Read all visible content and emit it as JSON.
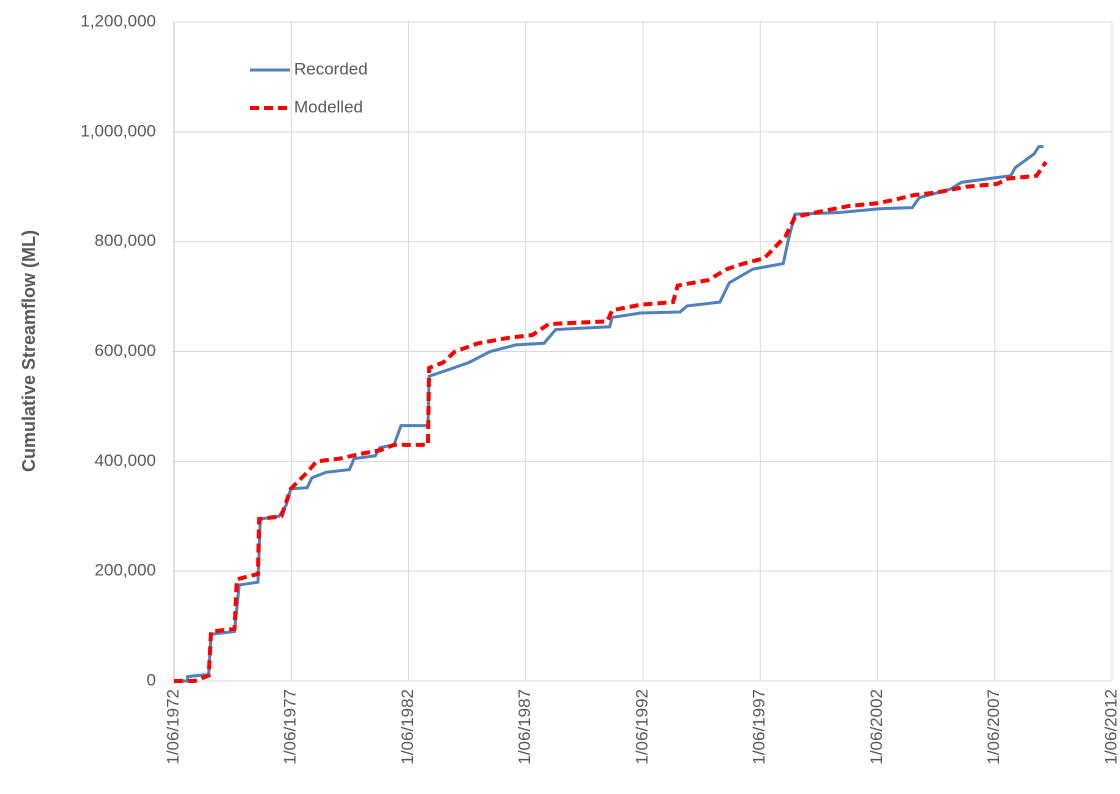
{
  "chart_data": {
    "type": "line",
    "y_label": "Cumulative Streamflow (ML)",
    "xlim": [
      1972.42,
      2012.42
    ],
    "xticks": [
      {
        "value": 1972.42,
        "label": "1/06/1972"
      },
      {
        "value": 1977.42,
        "label": "1/06/1977"
      },
      {
        "value": 1982.42,
        "label": "1/06/1982"
      },
      {
        "value": 1987.42,
        "label": "1/06/1987"
      },
      {
        "value": 1992.42,
        "label": "1/06/1992"
      },
      {
        "value": 1997.42,
        "label": "1/06/1997"
      },
      {
        "value": 2002.42,
        "label": "1/06/2002"
      },
      {
        "value": 2007.42,
        "label": "1/06/2007"
      },
      {
        "value": 2012.42,
        "label": "1/06/2012"
      }
    ],
    "ylim": [
      0,
      1200000
    ],
    "yticks": [
      0,
      {
        "value": 200000,
        "label": "200,000"
      },
      {
        "value": 400000,
        "label": "400,000"
      },
      {
        "value": 600000,
        "label": "600,000"
      },
      {
        "value": 800000,
        "label": "800,000"
      },
      {
        "value": 1000000,
        "label": "1,000,000"
      },
      {
        "value": 1200000,
        "label": "1,200,000"
      }
    ],
    "grid": true,
    "legend": "upper left",
    "series": [
      {
        "name": "Recorded",
        "color": "#4f81bd",
        "dash": false,
        "x": [
          1972.42,
          1973.0,
          1973.0,
          1973.9,
          1974.0,
          1975.0,
          1975.2,
          1976.0,
          1976.1,
          1976.9,
          1977.2,
          1977.4,
          1978.1,
          1978.3,
          1978.9,
          1979.9,
          1980.1,
          1981.0,
          1981.2,
          1981.8,
          1982.1,
          1983.25,
          1983.3,
          1984.0,
          1985.0,
          1985.9,
          1987.0,
          1988.2,
          1988.7,
          1991.0,
          1991.1,
          1992.3,
          1994.0,
          1994.3,
          1995.7,
          1996.1,
          1997.1,
          1998.4,
          1998.6,
          1998.9,
          2000.8,
          2002.5,
          2003.9,
          2004.2,
          2005.5,
          2006.0,
          2007.2,
          2008.1,
          2008.3,
          2009.1,
          2009.3,
          2009.5
        ],
        "values": [
          0,
          0,
          8000,
          12000,
          85000,
          90000,
          175000,
          180000,
          295000,
          300000,
          320000,
          350000,
          352000,
          370000,
          380000,
          385000,
          405000,
          410000,
          425000,
          430000,
          465000,
          465000,
          555000,
          565000,
          580000,
          600000,
          612000,
          615000,
          640000,
          645000,
          662000,
          670000,
          672000,
          683000,
          690000,
          725000,
          750000,
          760000,
          800000,
          850000,
          853000,
          860000,
          862000,
          880000,
          895000,
          908000,
          915000,
          920000,
          935000,
          960000,
          973000,
          973000
        ]
      },
      {
        "name": "Modelled",
        "color": "#ff0000",
        "dash": true,
        "x": [
          1972.42,
          1973.3,
          1973.9,
          1974.0,
          1975.0,
          1975.1,
          1976.0,
          1976.05,
          1977.0,
          1977.4,
          1978.1,
          1978.5,
          1979.5,
          1980.3,
          1981.2,
          1981.8,
          1983.25,
          1983.3,
          1983.9,
          1984.4,
          1985.4,
          1986.7,
          1987.7,
          1988.4,
          1990.9,
          1991.1,
          1992.3,
          1993.7,
          1993.9,
          1995.2,
          1996.0,
          1996.7,
          1997.6,
          1998.5,
          1998.9,
          2000.0,
          2001.2,
          2002.4,
          2003.0,
          2004.0,
          2005.0,
          2006.2,
          2007.5,
          2008.0,
          2009.2,
          2009.6
        ],
        "values": [
          0,
          0,
          10000,
          90000,
          95000,
          185000,
          195000,
          295000,
          300000,
          350000,
          380000,
          400000,
          405000,
          413000,
          420000,
          430000,
          430000,
          570000,
          580000,
          600000,
          615000,
          625000,
          630000,
          650000,
          655000,
          675000,
          685000,
          690000,
          720000,
          730000,
          750000,
          760000,
          770000,
          810000,
          845000,
          855000,
          865000,
          870000,
          875000,
          885000,
          890000,
          900000,
          905000,
          915000,
          920000,
          945000
        ]
      }
    ]
  }
}
